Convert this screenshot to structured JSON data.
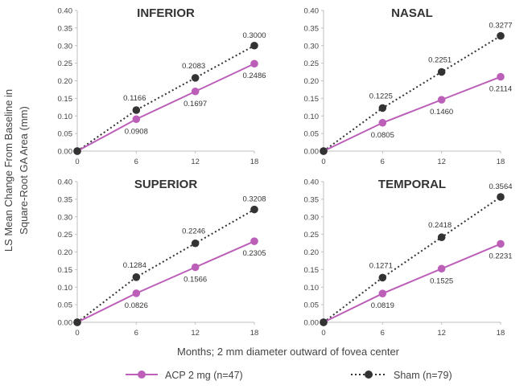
{
  "chart_data": {
    "type": "line",
    "xlabel": "Months; 2 mm diameter outward of fovea center",
    "ylabel_lines": [
      "LS Mean Change From Baseline in",
      "Square-Root GA Area (mm)"
    ],
    "x": [
      0,
      6,
      12,
      18
    ],
    "xticks": [
      "0",
      "6",
      "12",
      "18"
    ],
    "ylim": [
      0,
      0.4
    ],
    "yticks": [
      "0.00",
      "0.05",
      "0.10",
      "0.15",
      "0.20",
      "0.25",
      "0.30",
      "0.35",
      "0.40"
    ],
    "legend": {
      "position": "bottom",
      "entries": [
        {
          "name": "ACP 2 mg (n=47)",
          "color": "#bb5fb8",
          "style": "solid"
        },
        {
          "name": "Sham (n=79)",
          "color": "#333333",
          "style": "dotted"
        }
      ]
    },
    "panels": [
      {
        "title": "INFERIOR",
        "series": [
          {
            "name": "ACP 2 mg (n=47)",
            "values": [
              0,
              0.0908,
              0.1697,
              0.2486
            ],
            "labels": [
              "",
              "0.0908",
              "0.1697",
              "0.2486"
            ]
          },
          {
            "name": "Sham (n=79)",
            "values": [
              0,
              0.1166,
              0.2083,
              0.3
            ],
            "labels": [
              "",
              "0.1166",
              "0.2083",
              "0.3000"
            ]
          }
        ]
      },
      {
        "title": "NASAL",
        "series": [
          {
            "name": "ACP 2 mg (n=47)",
            "values": [
              0,
              0.0805,
              0.146,
              0.2114
            ],
            "labels": [
              "",
              "0.0805",
              "0.1460",
              "0.2114"
            ]
          },
          {
            "name": "Sham (n=79)",
            "values": [
              0,
              0.1225,
              0.2251,
              0.3277
            ],
            "labels": [
              "",
              "0.1225",
              "0.2251",
              "0.3277"
            ]
          }
        ]
      },
      {
        "title": "SUPERIOR",
        "series": [
          {
            "name": "ACP 2 mg (n=47)",
            "values": [
              0,
              0.0826,
              0.1566,
              0.2305
            ],
            "labels": [
              "",
              "0.0826",
              "0.1566",
              "0.2305"
            ]
          },
          {
            "name": "Sham (n=79)",
            "values": [
              0,
              0.1284,
              0.2246,
              0.3208
            ],
            "labels": [
              "",
              "0.1284",
              "0.2246",
              "0.3208"
            ]
          }
        ]
      },
      {
        "title": "TEMPORAL",
        "series": [
          {
            "name": "ACP 2 mg (n=47)",
            "values": [
              0,
              0.0819,
              0.1525,
              0.2231
            ],
            "labels": [
              "",
              "0.0819",
              "0.1525",
              "0.2231"
            ]
          },
          {
            "name": "Sham (n=79)",
            "values": [
              0,
              0.1271,
              0.2418,
              0.3564
            ],
            "labels": [
              "",
              "0.1271",
              "0.2418",
              "0.3564"
            ]
          }
        ]
      }
    ]
  }
}
